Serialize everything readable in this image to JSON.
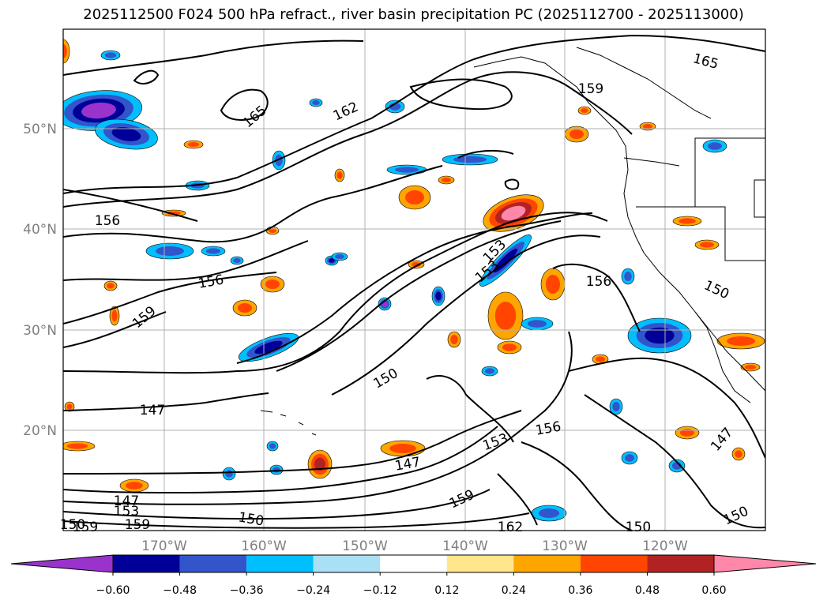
{
  "title": "2025112500 F024 500 hPa refract., river basin precipitation PC (2025112700 - 2025113000)",
  "chart_data": {
    "type": "heatmap",
    "title": "2025112500 F024 500 hPa refract., river basin precipitation PC (2025112700 - 2025113000)",
    "projection": "plate carree",
    "lon_range": [
      180,
      110
    ],
    "lat_range": [
      10,
      60
    ],
    "lon_ticks": [
      "170°W",
      "160°W",
      "150°W",
      "140°W",
      "130°W",
      "120°W"
    ],
    "lat_ticks": [
      "20°N",
      "30°N",
      "40°N",
      "50°N"
    ],
    "grid": true,
    "colorbar": {
      "orientation": "horizontal",
      "extend": "both",
      "ticks": [
        "−0.60",
        "−0.48",
        "−0.36",
        "−0.24",
        "−0.12",
        "0.12",
        "0.24",
        "0.36",
        "0.48",
        "0.60"
      ],
      "colors": [
        "#9933cc",
        "#000099",
        "#3355cc",
        "#00bfff",
        "#aae0f5",
        "#ffffff",
        "#ffe68c",
        "#ffa500",
        "#ff4500",
        "#b22222",
        "#ff88aa"
      ]
    },
    "contour_labels": [
      "165",
      "159",
      "162",
      "165",
      "156",
      "156",
      "159",
      "153",
      "153",
      "156",
      "150",
      "150",
      "147",
      "147",
      "153",
      "156",
      "159",
      "147",
      "153",
      "159",
      "150",
      "162",
      "150",
      "150",
      "147",
      "150",
      "159"
    ]
  }
}
